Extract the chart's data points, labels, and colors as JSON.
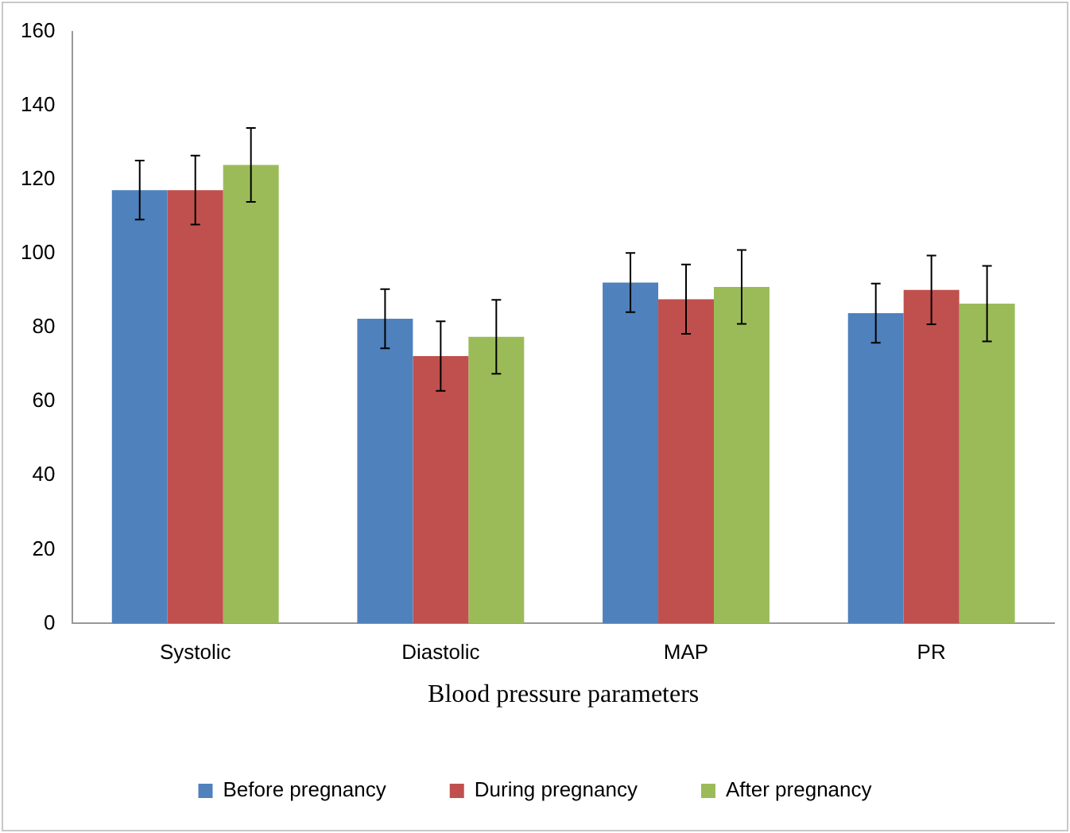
{
  "chart_data": {
    "type": "bar",
    "xlabel": "Blood pressure parameters",
    "categories": [
      "Systolic",
      "Diastolic",
      "MAP",
      "PR"
    ],
    "series": [
      {
        "name": "Before pregnancy",
        "color": "#4f81bd",
        "values": [
          117.2,
          82.4,
          92.2,
          83.9
        ],
        "errors": [
          8,
          8,
          8,
          8
        ]
      },
      {
        "name": "During pregnancy",
        "color": "#c0504d",
        "values": [
          117.2,
          72.3,
          87.7,
          90.2
        ],
        "errors": [
          9.3,
          9.4,
          9.4,
          9.3
        ]
      },
      {
        "name": "After pregnancy",
        "color": "#9bbb59",
        "values": [
          124,
          77.5,
          91,
          86.5
        ],
        "errors": [
          10,
          10,
          10,
          10.2
        ]
      }
    ],
    "ylim": [
      0,
      160
    ],
    "yticks": [
      0,
      20,
      40,
      60,
      80,
      100,
      120,
      140,
      160
    ],
    "grid": false,
    "legend": "bottom"
  }
}
